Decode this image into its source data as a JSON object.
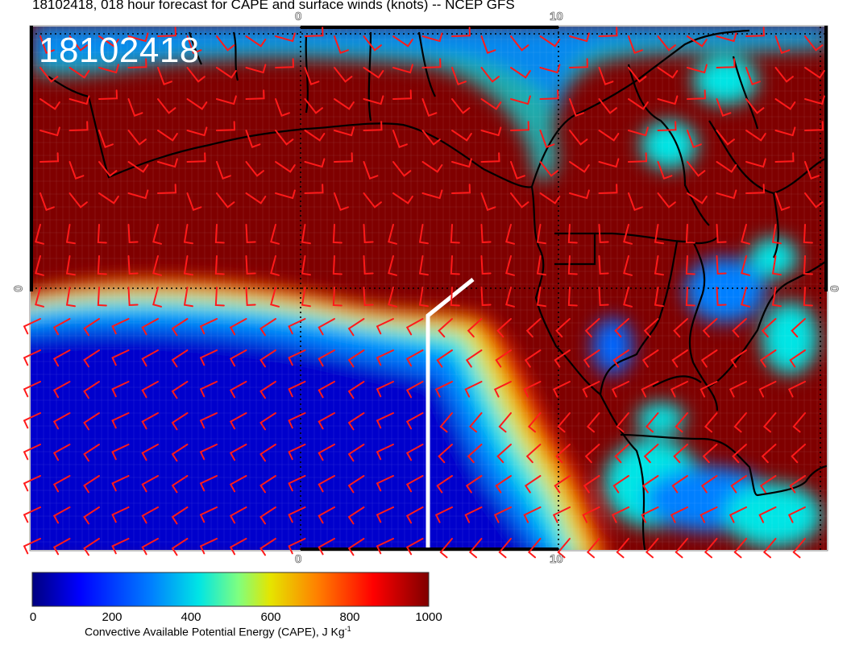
{
  "title": "18102418, 018 hour forecast for CAPE and surface winds (knots) -- NCEP GFS",
  "date_stamp": "18102418",
  "axis_ticks": {
    "lon": [
      "0",
      "10"
    ],
    "lat": [
      "0"
    ]
  },
  "colorbar": {
    "min": 0,
    "max": 1000,
    "ticks": [
      "0",
      "200",
      "400",
      "600",
      "800",
      "1000"
    ],
    "label": "Convective Available Potential Energy (CAPE), J Kg",
    "label_exponent": "-1",
    "colors": [
      "#00007f",
      "#0000ff",
      "#007fff",
      "#00e5e5",
      "#7fff7f",
      "#e5e500",
      "#ff7f00",
      "#ff0000",
      "#7f0000"
    ]
  },
  "colors": {
    "barb": "#ff1a1a",
    "coast": "#000000",
    "route": "#ffffff",
    "grid": "#000000"
  }
}
